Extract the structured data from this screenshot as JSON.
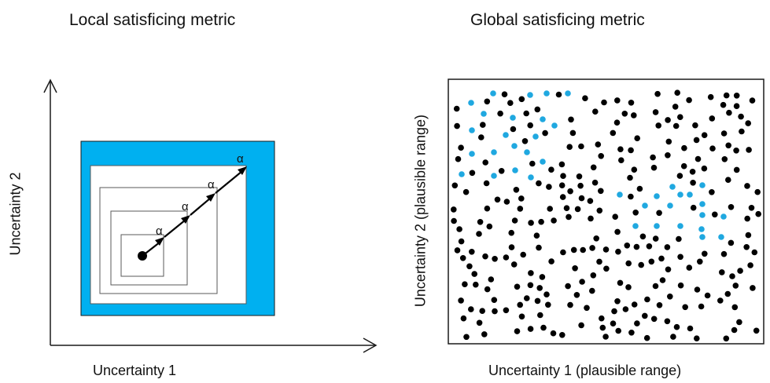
{
  "left_panel": {
    "title": "Local satisficing metric",
    "x_axis_label": "Uncertainty 1",
    "y_axis_label": "Uncertainty 2",
    "step_label": "α",
    "colors": {
      "fill": "#00B0F0",
      "stroke": "#1a1a1a",
      "inner_boxes": "#595959"
    }
  },
  "right_panel": {
    "title": "Global satisficing metric",
    "x_axis_label": "Uncertainty 1 (plausible range)",
    "y_axis_label": "Uncertainty 2 (plausible range)",
    "colors": {
      "satisfied_point": "#1FA8E0",
      "other_point": "#000000"
    }
  }
}
